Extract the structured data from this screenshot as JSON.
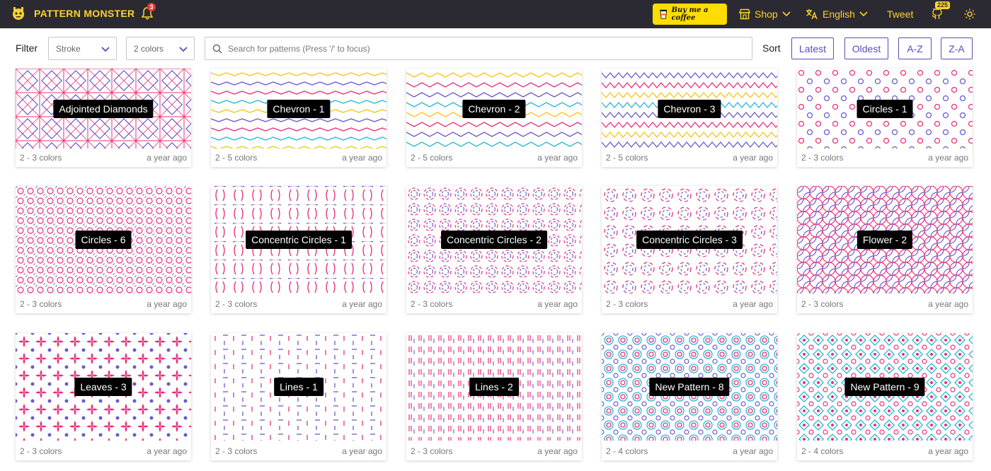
{
  "brand": {
    "name": "PATTERN MONSTER",
    "logo_icon": "monster-icon"
  },
  "notifications": {
    "count": "3"
  },
  "coffee_label": "Buy me a coffee",
  "nav": {
    "shop": "Shop",
    "language": "English",
    "tweet": "Tweet",
    "github_stars": "225"
  },
  "filter": {
    "label": "Filter",
    "stroke": "Stroke",
    "colors": "2 colors",
    "search_placeholder": "Search for patterns (Press '/' to focus)"
  },
  "sort": {
    "label": "Sort",
    "options": [
      "Latest",
      "Oldest",
      "A-Z",
      "Z-A"
    ]
  },
  "colors": {
    "accent": "#5b4bbf",
    "brand_yellow": "#ffd22e",
    "navbar": "#2b2a33",
    "pink": "#e8307a",
    "purple": "#6a5acd",
    "yellow": "#f5c518",
    "cyan": "#28b7d4"
  },
  "patterns": [
    {
      "title": "Adjointed Diamonds",
      "colors": "2 - 3 colors",
      "age": "a year ago"
    },
    {
      "title": "Chevron - 1",
      "colors": "2 - 5 colors",
      "age": "a year ago"
    },
    {
      "title": "Chevron - 2",
      "colors": "2 - 5 colors",
      "age": "a year ago"
    },
    {
      "title": "Chevron - 3",
      "colors": "2 - 5 colors",
      "age": "a year ago"
    },
    {
      "title": "Circles - 1",
      "colors": "2 - 3 colors",
      "age": "a year ago"
    },
    {
      "title": "Circles - 6",
      "colors": "2 - 3 colors",
      "age": "a year ago"
    },
    {
      "title": "Concentric Circles - 1",
      "colors": "2 - 3 colors",
      "age": "a year ago"
    },
    {
      "title": "Concentric Circles - 2",
      "colors": "2 - 3 colors",
      "age": "a year ago"
    },
    {
      "title": "Concentric Circles - 3",
      "colors": "2 - 3 colors",
      "age": "a year ago"
    },
    {
      "title": "Flower - 2",
      "colors": "2 - 3 colors",
      "age": "a year ago"
    },
    {
      "title": "Leaves - 3",
      "colors": "2 - 3 colors",
      "age": "a year ago"
    },
    {
      "title": "Lines - 1",
      "colors": "2 - 3 colors",
      "age": "a year ago"
    },
    {
      "title": "Lines - 2",
      "colors": "2 - 3 colors",
      "age": "a year ago"
    },
    {
      "title": "New Pattern - 8",
      "colors": "2 - 4 colors",
      "age": "a year ago"
    },
    {
      "title": "New Pattern - 9",
      "colors": "2 - 4 colors",
      "age": "a year ago"
    }
  ]
}
